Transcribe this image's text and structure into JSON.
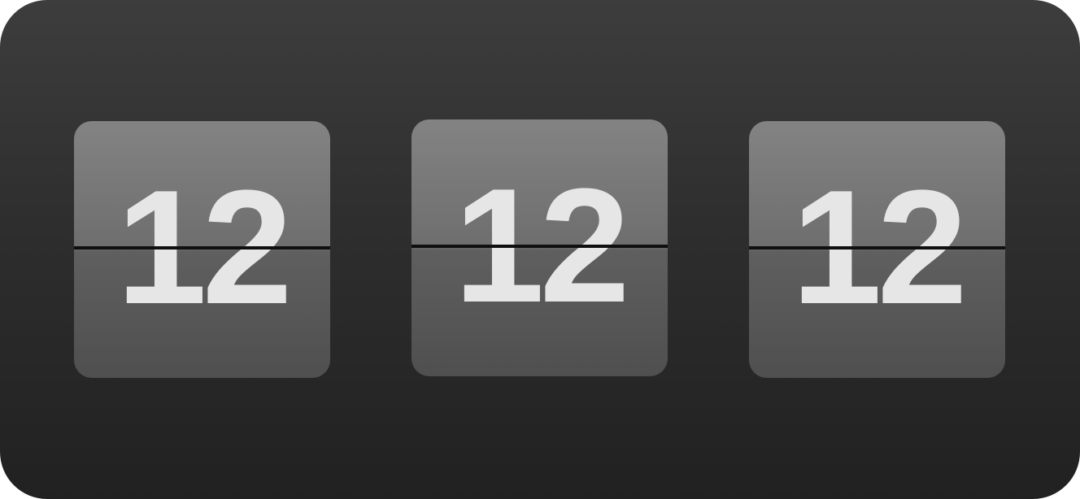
{
  "flip_clock": {
    "cards": [
      {
        "value": "12"
      },
      {
        "value": "12"
      },
      {
        "value": "12"
      }
    ]
  },
  "colors": {
    "background_top": "#3d3d3d",
    "background_bottom": "#212121",
    "card_top": "#838383",
    "card_bottom": "#4f4f4f",
    "digit": "#e6e6e6",
    "split_line": "#0f0f0f"
  }
}
